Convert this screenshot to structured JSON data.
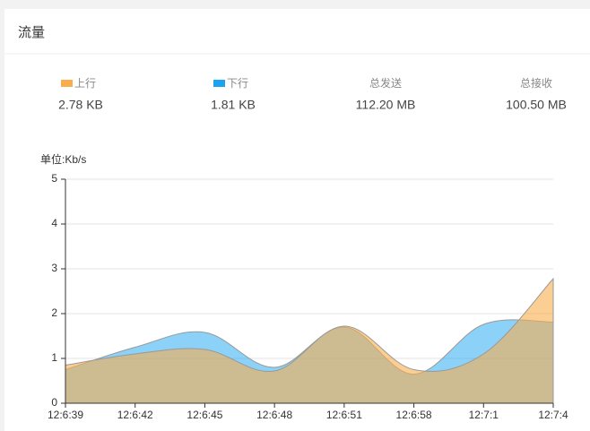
{
  "header": {
    "title": "流量"
  },
  "stats": [
    {
      "value": "2.78 KB"
    },
    {
      "value": "1.81 KB"
    },
    {
      "label": "总发送",
      "value": "112.20 MB"
    },
    {
      "label": "总接收",
      "value": "100.50 MB"
    }
  ],
  "chart_data": {
    "type": "area",
    "y_axis_label": "单位:Kb/s",
    "categories": [
      "12:6:39",
      "12:6:42",
      "12:6:45",
      "12:6:48",
      "12:6:51",
      "12:6:58",
      "12:7:1",
      "12:7:4"
    ],
    "series": [
      {
        "name": "上行",
        "color": "#f9ad4c",
        "values": [
          0.85,
          1.1,
          1.2,
          0.72,
          1.72,
          0.75,
          1.1,
          2.78
        ]
      },
      {
        "name": "下行",
        "color": "#1aa3f0",
        "values": [
          0.75,
          1.25,
          1.58,
          0.8,
          1.7,
          0.65,
          1.76,
          1.81
        ]
      }
    ],
    "ylim": [
      0,
      5
    ],
    "yticks": [
      0,
      1,
      2,
      3,
      4,
      5
    ],
    "grid": true
  }
}
